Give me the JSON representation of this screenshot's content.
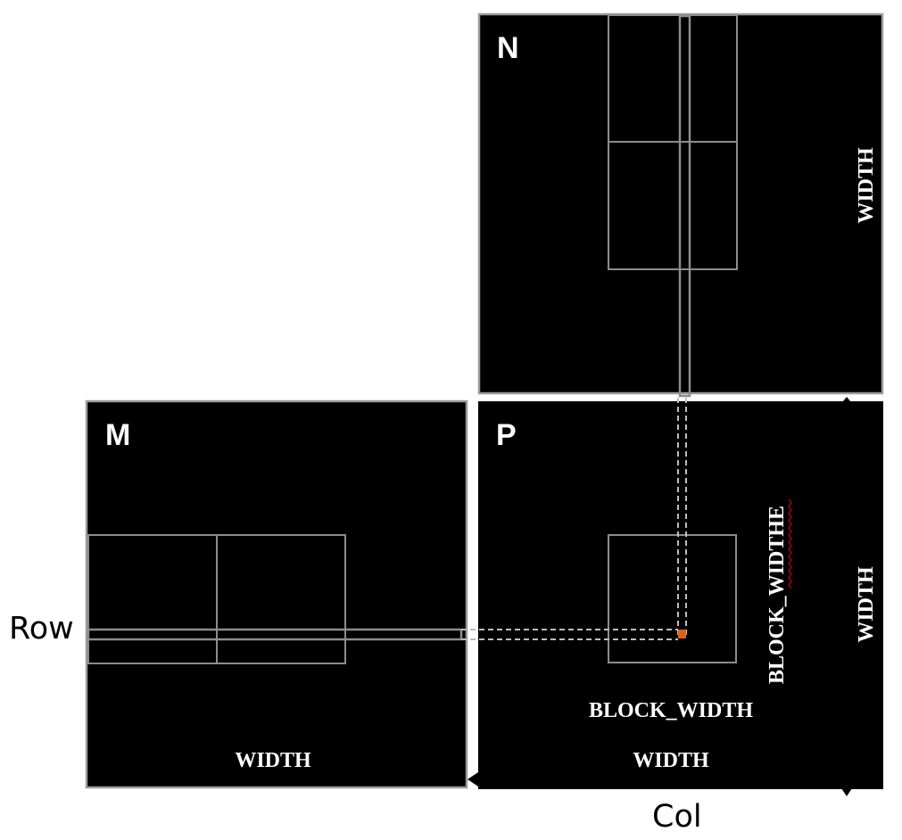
{
  "matrices": {
    "n": {
      "label": "N",
      "dim_label": "WIDTH"
    },
    "m": {
      "label": "M",
      "dim_label": "WIDTH"
    },
    "p": {
      "label": "P",
      "width_label": "WIDTH",
      "height_label": "WIDTH",
      "block_width_label": "BLOCK_WIDTH",
      "block_height_label": "BLOCK_WIDTHE"
    }
  },
  "axis_labels": {
    "row": "Row",
    "col": "Col"
  },
  "colors": {
    "matrix_fill": "#000000",
    "matrix_border": "#9a9a9a",
    "tile_border": "#8c8c8c",
    "dashed_line": "#bdbdbd",
    "element_highlight": "#e0621a",
    "text": "#ffffff",
    "spell_underline": "#cc0000"
  }
}
